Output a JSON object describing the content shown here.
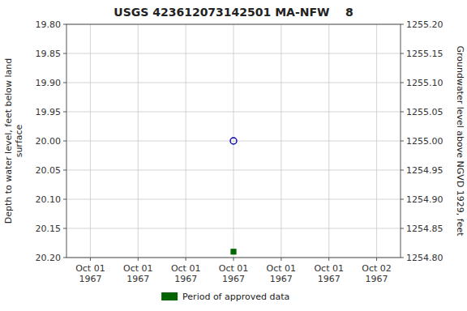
{
  "chart_data": {
    "type": "scatter",
    "title": "USGS 423612073142501 MA-NFW    8",
    "ylabel": "Depth to water level, feet below land\nsurface",
    "y2label": "Groundwater level above NGVD 1929, feet",
    "categories": [
      "Oct 01\n1967",
      "Oct 01\n1967",
      "Oct 01\n1967",
      "Oct 01\n1967",
      "Oct 01\n1967",
      "Oct 01\n1967",
      "Oct 02\n1967"
    ],
    "series": [
      {
        "color": "#0000cc",
        "marker": "open-circle",
        "values": [
          null,
          null,
          null,
          20.0,
          null,
          null,
          null
        ]
      },
      {
        "name": "Period of approved data",
        "color": "#006400",
        "marker": "square",
        "values": [
          null,
          null,
          null,
          20.19,
          null,
          null,
          null
        ]
      }
    ],
    "ylim": [
      20.2,
      19.8
    ],
    "yticks": [
      {
        "value": 19.8,
        "label": "19.80"
      },
      {
        "value": 19.85,
        "label": "19.85"
      },
      {
        "value": 19.9,
        "label": "19.90"
      },
      {
        "value": 19.95,
        "label": "19.95"
      },
      {
        "value": 20.0,
        "label": "20.00"
      },
      {
        "value": 20.05,
        "label": "20.05"
      },
      {
        "value": 20.1,
        "label": "20.10"
      },
      {
        "value": 20.15,
        "label": "20.15"
      },
      {
        "value": 20.2,
        "label": "20.20"
      }
    ],
    "y2lim": [
      1254.8,
      1255.2
    ],
    "y2ticks": [
      {
        "value": 1255.2,
        "label": "1255.20"
      },
      {
        "value": 1255.15,
        "label": "1255.15"
      },
      {
        "value": 1255.1,
        "label": "1255.10"
      },
      {
        "value": 1255.05,
        "label": "1255.05"
      },
      {
        "value": 1255.0,
        "label": "1255.00"
      },
      {
        "value": 1254.95,
        "label": "1254.95"
      },
      {
        "value": 1254.9,
        "label": "1254.90"
      },
      {
        "value": 1254.85,
        "label": "1254.85"
      },
      {
        "value": 1254.8,
        "label": "1254.80"
      }
    ],
    "grid": true,
    "legend": "bottom"
  }
}
